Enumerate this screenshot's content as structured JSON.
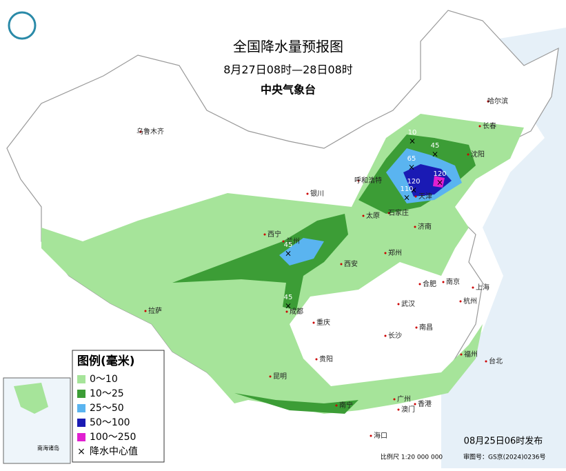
{
  "header": {
    "title": "全国降水量预报图",
    "period": "8月27日08时—28日08时",
    "agency": "中央气象台"
  },
  "cities": [
    "乌鲁木齐",
    "哈尔滨",
    "长春",
    "沈阳",
    "呼和浩特",
    "天津",
    "石家庄",
    "太原",
    "银川",
    "西宁",
    "兰州",
    "济南",
    "郑州",
    "西安",
    "合肥",
    "南京",
    "上海",
    "武汉",
    "杭州",
    "成都",
    "重庆",
    "拉萨",
    "长沙",
    "南昌",
    "贵阳",
    "福州",
    "台北",
    "昆明",
    "南宁",
    "广州",
    "香港",
    "澳门",
    "海口"
  ],
  "centers": [
    "10",
    "45",
    "65",
    "120",
    "120",
    "110",
    "45",
    "45"
  ],
  "legend": {
    "title": "图例(毫米)",
    "items": [
      "0～10",
      "10～25",
      "25～50",
      "50～100",
      "100～250",
      "降水中心值"
    ]
  },
  "footer": {
    "issued": "08月25日06时发布",
    "scale": "比例尺 1:20 000 000",
    "approval": "审图号：GS京(2024)0236号"
  },
  "inset": {
    "label": "南海诸岛"
  }
}
